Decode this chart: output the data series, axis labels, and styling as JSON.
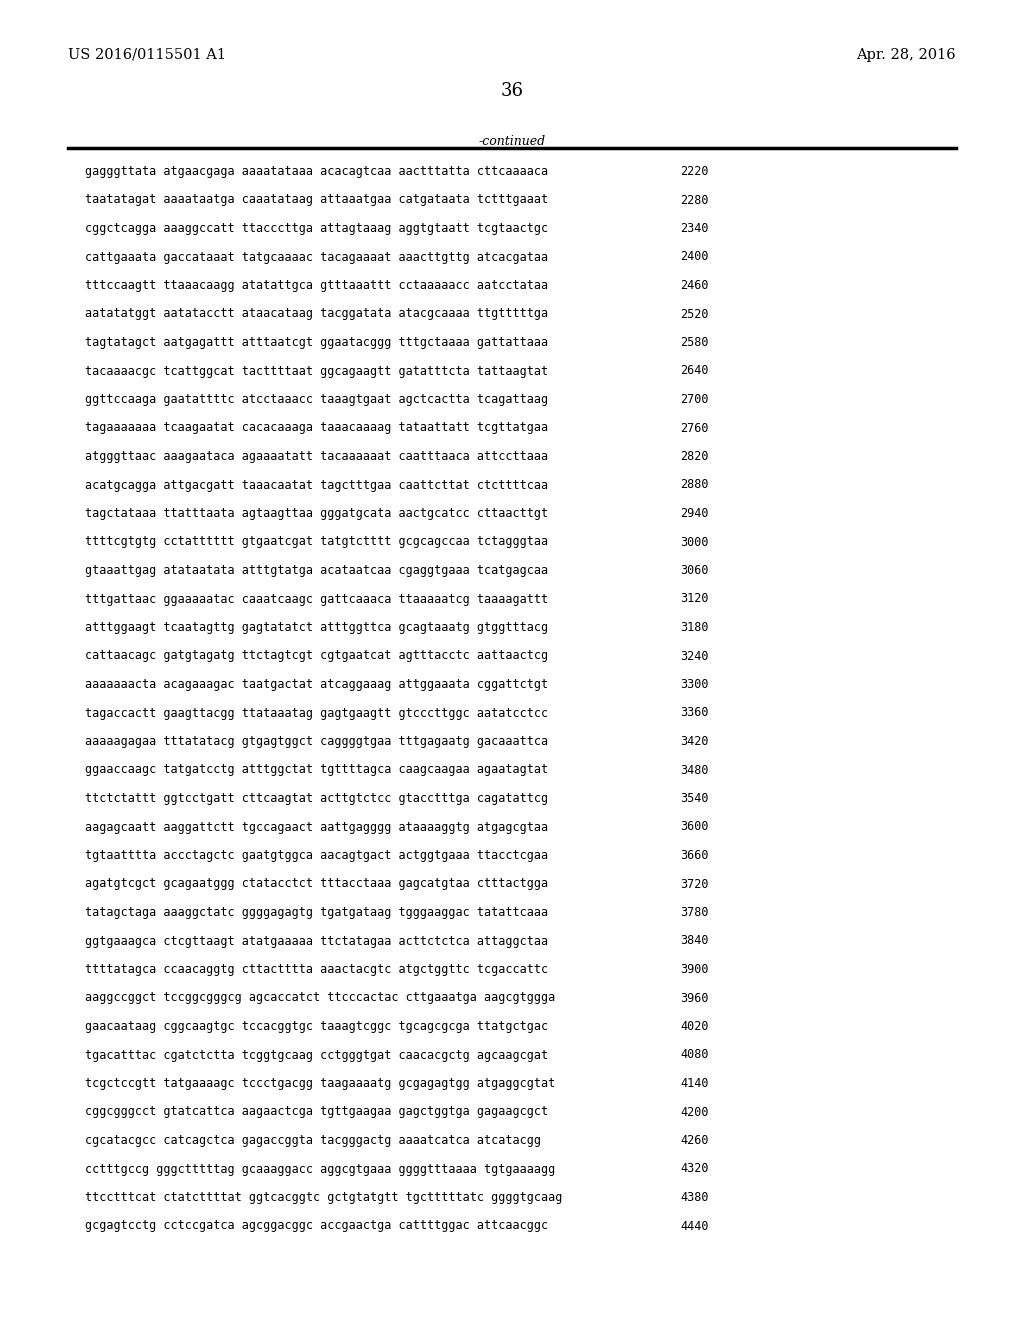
{
  "header_left": "US 2016/0115501 A1",
  "header_right": "Apr. 28, 2016",
  "page_number": "36",
  "continued_text": "-continued",
  "background_color": "#ffffff",
  "text_color": "#000000",
  "font_size": 8.5,
  "header_font_size": 10.5,
  "page_num_font_size": 13,
  "sequences": [
    [
      "gagggttata atgaacgaga aaaatataaa acacagtcaa aactttatta cttcaaaaca",
      "2220"
    ],
    [
      "taatatagat aaaataatga caaatataag attaaatgaa catgataata tctttgaaat",
      "2280"
    ],
    [
      "cggctcagga aaaggccatt ttacccttga attagtaaag aggtgtaatt tcgtaactgc",
      "2340"
    ],
    [
      "cattgaaata gaccataaat tatgcaaaac tacagaaaat aaacttgttg atcacgataa",
      "2400"
    ],
    [
      "tttccaagtt ttaaacaagg atatattgca gtttaaattt cctaaaaacc aatcctataa",
      "2460"
    ],
    [
      "aatatatggt aatatacctt ataacataag tacggatata atacgcaaaa ttgtttttga",
      "2520"
    ],
    [
      "tagtatagct aatgagattt atttaatcgt ggaatacggg tttgctaaaa gattattaaa",
      "2580"
    ],
    [
      "tacaaaacgc tcattggcat tacttttaat ggcagaagtt gatatttcta tattaagtat",
      "2640"
    ],
    [
      "ggttccaaga gaatattttc atcctaaacc taaagtgaat agctcactta tcagattaag",
      "2700"
    ],
    [
      "tagaaaaaaa tcaagaatat cacacaaaga taaacaaaag tataattatt tcgttatgaa",
      "2760"
    ],
    [
      "atgggttaac aaagaataca agaaaatatt tacaaaaaat caatttaaca attccttaaa",
      "2820"
    ],
    [
      "acatgcagga attgacgatt taaacaatat tagctttgaa caattcttat ctcttttcaa",
      "2880"
    ],
    [
      "tagctataaa ttatttaata agtaagttaa gggatgcata aactgcatcc cttaacttgt",
      "2940"
    ],
    [
      "ttttcgtgtg cctatttttt gtgaatcgat tatgtctttt gcgcagccaa tctagggtaa",
      "3000"
    ],
    [
      "gtaaattgag atataatata atttgtatga acataatcaa cgaggtgaaa tcatgagcaa",
      "3060"
    ],
    [
      "tttgattaac ggaaaaatac caaatcaagc gattcaaaca ttaaaaatcg taaaagattt",
      "3120"
    ],
    [
      "atttggaagt tcaatagttg gagtatatct atttggttca gcagtaaatg gtggtttacg",
      "3180"
    ],
    [
      "cattaacagc gatgtagatg ttctagtcgt cgtgaatcat agtttacctc aattaactcg",
      "3240"
    ],
    [
      "aaaaaaacta acagaaagac taatgactat atcaggaaag attggaaata cggattctgt",
      "3300"
    ],
    [
      "tagaccactt gaagttacgg ttataaatag gagtgaagtt gtcccttggc aatatcctcc",
      "3360"
    ],
    [
      "aaaaagagaa tttatatacg gtgagtggct caggggtgaa tttgagaatg gacaaattca",
      "3420"
    ],
    [
      "ggaaccaagc tatgatcctg atttggctat tgttttagca caagcaagaa agaatagtat",
      "3480"
    ],
    [
      "ttctctattt ggtcctgatt cttcaagtat acttgtctcc gtacctttga cagatattcg",
      "3540"
    ],
    [
      "aagagcaatt aaggattctt tgccagaact aattgagggg ataaaaggtg atgagcgtaa",
      "3600"
    ],
    [
      "tgtaatttta accctagctc gaatgtggca aacagtgact actggtgaaa ttacctcgaa",
      "3660"
    ],
    [
      "agatgtcgct gcagaatggg ctatacctct tttacctaaa gagcatgtaa ctttactgga",
      "3720"
    ],
    [
      "tatagctaga aaaggctatc ggggagagtg tgatgataag tgggaaggac tatattcaaa",
      "3780"
    ],
    [
      "ggtgaaagca ctcgttaagt atatgaaaaa ttctatagaa acttctctca attaggctaa",
      "3840"
    ],
    [
      "ttttatagca ccaacaggtg cttactttta aaactacgtc atgctggttc tcgaccattc",
      "3900"
    ],
    [
      "aaggccggct tccggcgggcg agcaccatct ttcccactac cttgaaatga aagcgtggga",
      "3960"
    ],
    [
      "gaacaataag cggcaagtgc tccacggtgc taaagtcggc tgcagcgcga ttatgctgac",
      "4020"
    ],
    [
      "tgacatttac cgatctctta tcggtgcaag cctgggtgat caacacgctg agcaagcgat",
      "4080"
    ],
    [
      "tcgctccgtt tatgaaaagc tccctgacgg taagaaaatg gcgagagtgg atgaggcgtat",
      "4140"
    ],
    [
      "cggcgggcct gtatcattca aagaactcga tgttgaagaa gagctggtga gagaagcgct",
      "4200"
    ],
    [
      "cgcatacgcc catcagctca gagaccggta tacgggactg aaaatcatca atcatacgg",
      "4260"
    ],
    [
      "cctttgccg gggctttttag gcaaaggacc aggcgtgaaa ggggtttaaaa tgtgaaaagg",
      "4320"
    ],
    [
      "ttcctttcat ctatcttttat ggtcacggtc gctgtatgtt tgctttttatc ggggtgcaag",
      "4380"
    ],
    [
      "gcgagtcctg cctccgatca agcggacggc accgaactga cattttggac attcaacggc",
      "4440"
    ]
  ]
}
